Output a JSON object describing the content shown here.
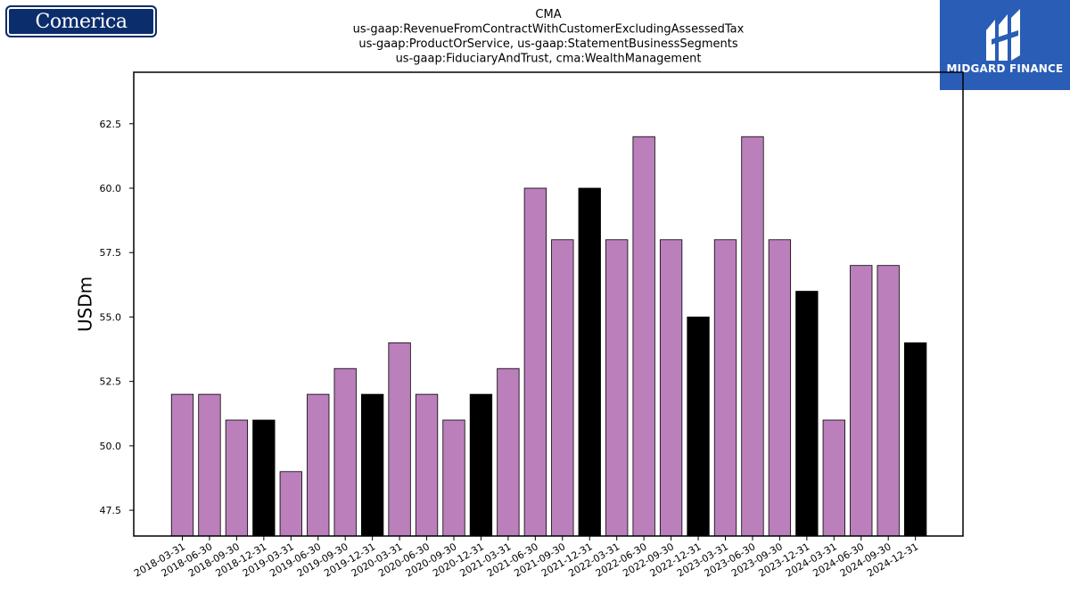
{
  "logos": {
    "left_text": "Comerica",
    "right_text": "MIDGARD FINANCE"
  },
  "colors": {
    "bar_default": "#bb7fbc",
    "bar_highlight": "#000000",
    "logo_left_bg": "#0b2d6b",
    "logo_right_bg": "#2a5db5"
  },
  "chart_data": {
    "type": "bar",
    "title": [
      "CMA",
      "us-gaap:RevenueFromContractWithCustomerExcludingAssessedTax",
      "us-gaap:ProductOrService, us-gaap:StatementBusinessSegments",
      "us-gaap:FiduciaryAndTrust, cma:WealthManagement"
    ],
    "xlabel": "",
    "ylabel": "USDm",
    "ylim": [
      46.5,
      64.5
    ],
    "yticks": [
      47.5,
      50.0,
      52.5,
      55.0,
      57.5,
      60.0,
      62.5
    ],
    "ytick_labels": [
      "47.5",
      "50.0",
      "52.5",
      "55.0",
      "57.5",
      "60.0",
      "62.5"
    ],
    "grid": false,
    "categories": [
      "2018-03-31",
      "2018-06-30",
      "2018-09-30",
      "2018-12-31",
      "2019-03-31",
      "2019-06-30",
      "2019-09-30",
      "2019-12-31",
      "2020-03-31",
      "2020-06-30",
      "2020-09-30",
      "2020-12-31",
      "2021-03-31",
      "2021-06-30",
      "2021-09-30",
      "2021-12-31",
      "2022-03-31",
      "2022-06-30",
      "2022-09-30",
      "2022-12-31",
      "2023-03-31",
      "2023-06-30",
      "2023-09-30",
      "2023-12-31",
      "2024-03-31",
      "2024-06-30",
      "2024-09-30",
      "2024-12-31"
    ],
    "values": [
      52,
      52,
      51,
      51,
      49,
      52,
      53,
      52,
      54,
      52,
      51,
      52,
      53,
      60,
      58,
      60,
      58,
      62,
      58,
      55,
      58,
      62,
      58,
      56,
      51,
      57,
      57,
      54
    ],
    "highlighted": [
      false,
      false,
      false,
      true,
      false,
      false,
      false,
      true,
      false,
      false,
      false,
      true,
      false,
      false,
      false,
      true,
      false,
      false,
      false,
      true,
      false,
      false,
      false,
      true,
      false,
      false,
      false,
      true
    ]
  }
}
